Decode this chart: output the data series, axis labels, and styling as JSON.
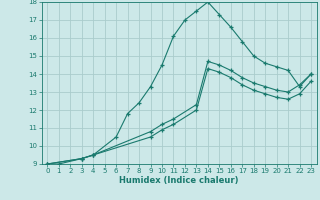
{
  "xlabel": "Humidex (Indice chaleur)",
  "bg_color": "#cce8e8",
  "grid_color": "#aacccc",
  "line_color": "#1a7a6e",
  "xlim": [
    -0.5,
    23.5
  ],
  "ylim": [
    9,
    18
  ],
  "yticks": [
    9,
    10,
    11,
    12,
    13,
    14,
    15,
    16,
    17,
    18
  ],
  "xticks": [
    0,
    1,
    2,
    3,
    4,
    5,
    6,
    7,
    8,
    9,
    10,
    11,
    12,
    13,
    14,
    15,
    16,
    17,
    18,
    19,
    20,
    21,
    22,
    23
  ],
  "series1_x": [
    0,
    1,
    3,
    4,
    6,
    7,
    8,
    9,
    10,
    11,
    12,
    13,
    14,
    15,
    16,
    17,
    18,
    19,
    20,
    21,
    22,
    23
  ],
  "series1_y": [
    9,
    9,
    9.3,
    9.5,
    10.5,
    11.8,
    12.4,
    13.3,
    14.5,
    16.1,
    17.0,
    17.5,
    18.0,
    17.3,
    16.6,
    15.8,
    15.0,
    14.6,
    14.4,
    14.2,
    13.3,
    14.0
  ],
  "series2_x": [
    0,
    3,
    4,
    9,
    10,
    11,
    13,
    14,
    15,
    16,
    17,
    18,
    19,
    20,
    21,
    22,
    23
  ],
  "series2_y": [
    9,
    9.3,
    9.5,
    10.8,
    11.2,
    11.5,
    12.3,
    14.7,
    14.5,
    14.2,
    13.8,
    13.5,
    13.3,
    13.1,
    13.0,
    13.4,
    14.0
  ],
  "series3_x": [
    0,
    3,
    4,
    9,
    10,
    11,
    13,
    14,
    15,
    16,
    17,
    18,
    19,
    20,
    21,
    22,
    23
  ],
  "series3_y": [
    9,
    9.3,
    9.5,
    10.5,
    10.9,
    11.2,
    12.0,
    14.3,
    14.1,
    13.8,
    13.4,
    13.1,
    12.9,
    12.7,
    12.6,
    12.9,
    13.6
  ],
  "tick_fontsize": 5.0,
  "xlabel_fontsize": 6.0,
  "xlabel_bold": true
}
